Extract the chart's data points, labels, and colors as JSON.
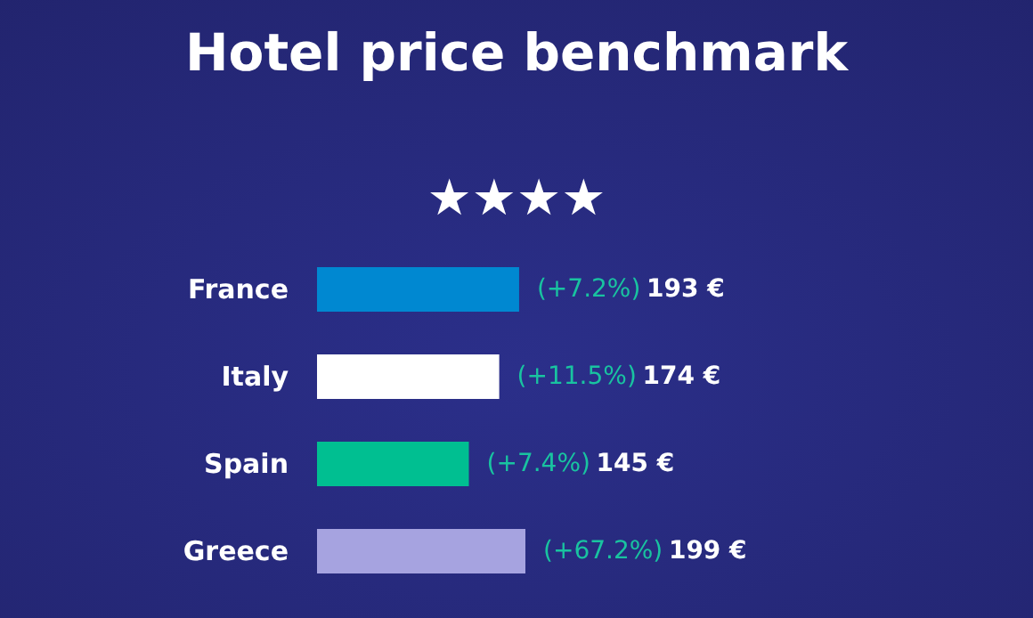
{
  "chart_data": {
    "type": "bar",
    "orientation": "horizontal",
    "title": "Hotel price benchmark",
    "subtitle": "★★★★",
    "categories": [
      "France",
      "Italy",
      "Spain",
      "Greece"
    ],
    "values": [
      193,
      174,
      145,
      199
    ],
    "colors": [
      "#0088d1",
      "#ffffff",
      "#00bf91",
      "#a6a3e0"
    ],
    "value_labels": [
      "(+7.2%) 193 €",
      "(+11.5%) 174 €",
      "(+7.4%) 145 €",
      "(+67.2%) 199 €"
    ],
    "tick_labels": "y"
  }
}
